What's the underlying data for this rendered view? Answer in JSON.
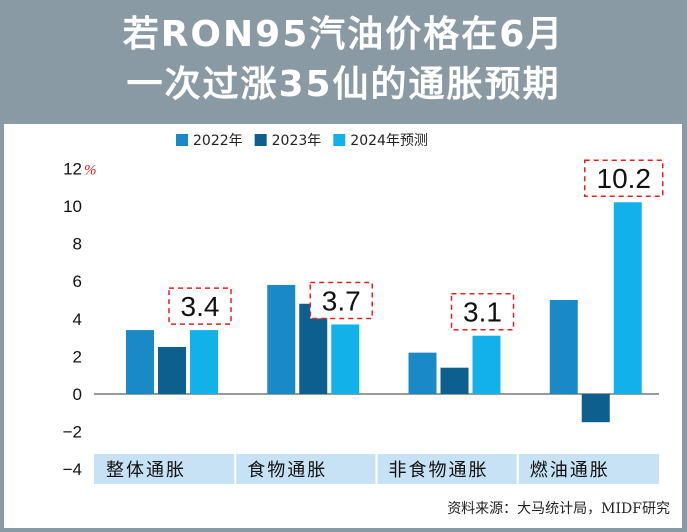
{
  "title": {
    "line1": "若RON95汽油价格在6月",
    "line2": "一次过涨35仙的通胀预期"
  },
  "source": "资料来源：大马统计局，MIDF研究",
  "colors": {
    "s2022": "#1a8ac6",
    "s2023": "#0d5f8e",
    "s2024": "#13b1ea",
    "category_band": "#c8e2f5",
    "highlight_box": "#e02020",
    "header_bg": "#8a9aa4"
  },
  "chart_data": {
    "type": "bar",
    "categories": [
      "整体通胀",
      "食物通胀",
      "非食物通胀",
      "燃油通胀"
    ],
    "series": [
      {
        "name": "2022年",
        "values": [
          3.4,
          5.8,
          2.2,
          5.0
        ]
      },
      {
        "name": "2023年",
        "values": [
          2.5,
          4.8,
          1.4,
          -1.5
        ]
      },
      {
        "name": "2024年预测",
        "values": [
          3.4,
          3.7,
          3.1,
          10.2
        ]
      }
    ],
    "highlight_labels": [
      "3.4",
      "3.7",
      "3.1",
      "10.2"
    ],
    "y_ticks": [
      "−4",
      "−2",
      "0",
      "2",
      "4",
      "6",
      "8",
      "10",
      "12"
    ],
    "y_unit": "%",
    "ylim": [
      -4,
      12
    ],
    "legend_position": "top-center",
    "grid": false
  }
}
